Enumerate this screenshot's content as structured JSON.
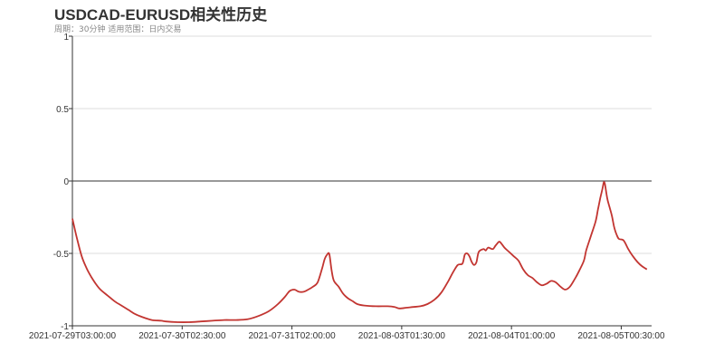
{
  "chart_data": {
    "type": "line",
    "title": "USDCAD-EURUSD相关性历史",
    "subtitle": "周期：30分钟 适用范围：日内交易",
    "xlabel": "",
    "ylabel": "",
    "ylim": [
      -1,
      1
    ],
    "yticks": [
      "1",
      "0.5",
      "0",
      "-0.5",
      "-1"
    ],
    "ytick_values": [
      1,
      0.5,
      0,
      -0.5,
      -1
    ],
    "xticks": [
      "2021-07-29T03:00:00",
      "2021-07-30T02:30:00",
      "2021-07-31T02:00:00",
      "2021-08-03T01:30:00",
      "2021-08-04T01:00:00",
      "2021-08-05T00:30:00"
    ],
    "xtick_index": [
      0,
      47,
      94,
      141,
      188,
      235
    ],
    "n_points": 249,
    "grid": true,
    "series": [
      {
        "color": "#c23531",
        "points": [
          [
            0,
            -0.26
          ],
          [
            2,
            -0.4
          ],
          [
            4,
            -0.52
          ],
          [
            6,
            -0.6
          ],
          [
            8,
            -0.66
          ],
          [
            10,
            -0.71
          ],
          [
            12,
            -0.75
          ],
          [
            15,
            -0.79
          ],
          [
            18,
            -0.83
          ],
          [
            21,
            -0.86
          ],
          [
            24,
            -0.89
          ],
          [
            27,
            -0.92
          ],
          [
            30,
            -0.94
          ],
          [
            34,
            -0.96
          ],
          [
            38,
            -0.965
          ],
          [
            40,
            -0.97
          ],
          [
            45,
            -0.975
          ],
          [
            50,
            -0.975
          ],
          [
            55,
            -0.97
          ],
          [
            60,
            -0.965
          ],
          [
            65,
            -0.96
          ],
          [
            70,
            -0.96
          ],
          [
            75,
            -0.955
          ],
          [
            80,
            -0.93
          ],
          [
            84,
            -0.9
          ],
          [
            88,
            -0.85
          ],
          [
            91,
            -0.8
          ],
          [
            93,
            -0.76
          ],
          [
            95,
            -0.75
          ],
          [
            97,
            -0.765
          ],
          [
            99,
            -0.765
          ],
          [
            101,
            -0.75
          ],
          [
            103,
            -0.73
          ],
          [
            105,
            -0.7
          ],
          [
            107,
            -0.6
          ],
          [
            108,
            -0.54
          ],
          [
            109,
            -0.51
          ],
          [
            110,
            -0.505
          ],
          [
            111,
            -0.62
          ],
          [
            112,
            -0.69
          ],
          [
            114,
            -0.73
          ],
          [
            116,
            -0.78
          ],
          [
            118,
            -0.81
          ],
          [
            120,
            -0.83
          ],
          [
            122,
            -0.85
          ],
          [
            125,
            -0.86
          ],
          [
            130,
            -0.865
          ],
          [
            135,
            -0.865
          ],
          [
            138,
            -0.87
          ],
          [
            140,
            -0.88
          ],
          [
            143,
            -0.875
          ],
          [
            146,
            -0.87
          ],
          [
            149,
            -0.865
          ],
          [
            152,
            -0.85
          ],
          [
            155,
            -0.82
          ],
          [
            158,
            -0.77
          ],
          [
            161,
            -0.69
          ],
          [
            163,
            -0.63
          ],
          [
            165,
            -0.58
          ],
          [
            167,
            -0.57
          ],
          [
            168,
            -0.51
          ],
          [
            169,
            -0.5
          ],
          [
            170,
            -0.52
          ],
          [
            171,
            -0.56
          ],
          [
            172,
            -0.58
          ],
          [
            173,
            -0.56
          ],
          [
            174,
            -0.49
          ],
          [
            176,
            -0.47
          ],
          [
            177,
            -0.48
          ],
          [
            178,
            -0.46
          ],
          [
            180,
            -0.47
          ],
          [
            181,
            -0.45
          ],
          [
            182,
            -0.43
          ],
          [
            183,
            -0.42
          ],
          [
            185,
            -0.46
          ],
          [
            187,
            -0.49
          ],
          [
            189,
            -0.52
          ],
          [
            191,
            -0.55
          ],
          [
            193,
            -0.61
          ],
          [
            195,
            -0.65
          ],
          [
            197,
            -0.67
          ],
          [
            199,
            -0.7
          ],
          [
            201,
            -0.72
          ],
          [
            203,
            -0.71
          ],
          [
            205,
            -0.69
          ],
          [
            207,
            -0.7
          ],
          [
            209,
            -0.73
          ],
          [
            211,
            -0.75
          ],
          [
            213,
            -0.73
          ],
          [
            215,
            -0.68
          ],
          [
            217,
            -0.62
          ],
          [
            219,
            -0.55
          ],
          [
            220,
            -0.48
          ],
          [
            222,
            -0.38
          ],
          [
            224,
            -0.28
          ],
          [
            225,
            -0.2
          ],
          [
            226,
            -0.12
          ],
          [
            227,
            -0.05
          ],
          [
            227.5,
            -0.01
          ],
          [
            228,
            -0.02
          ],
          [
            229,
            -0.12
          ],
          [
            230,
            -0.18
          ],
          [
            231,
            -0.24
          ],
          [
            232,
            -0.32
          ],
          [
            233,
            -0.37
          ],
          [
            234,
            -0.4
          ],
          [
            236,
            -0.41
          ],
          [
            238,
            -0.47
          ],
          [
            240,
            -0.52
          ],
          [
            242,
            -0.56
          ],
          [
            244,
            -0.59
          ],
          [
            246,
            -0.61
          ]
        ]
      }
    ]
  }
}
